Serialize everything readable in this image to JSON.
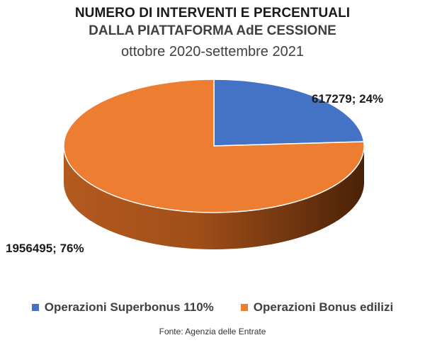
{
  "chart_data": {
    "type": "pie",
    "title": "NUMERO DI INTERVENTI E PERCENTUALI",
    "title_line2": "DALLA PIATTAFORMA AdE CESSIONE",
    "subtitle": "ottobre 2020-settembre 2021",
    "slices": [
      {
        "name": "Operazioni Superbonus 110%",
        "value": 617279,
        "percent": 24,
        "label": "617279; 24%",
        "color": "#4472c4"
      },
      {
        "name": "Operazioni Bonus edilizi",
        "value": 1956495,
        "percent": 76,
        "label": "1956495; 76%",
        "color": "#ed7d31"
      }
    ],
    "style": "3d",
    "legend_position": "bottom"
  },
  "source": "Fonte: Agenzia delle Entrate"
}
